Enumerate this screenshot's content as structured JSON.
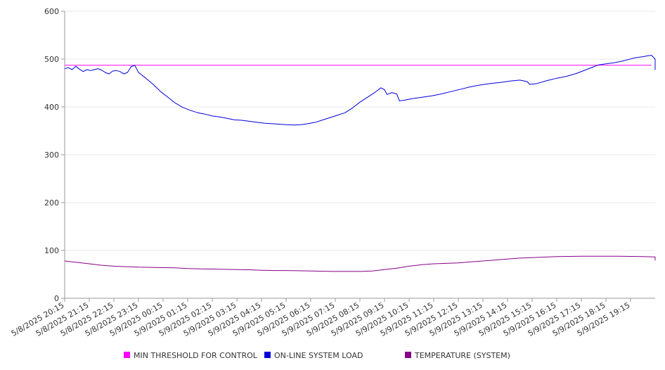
{
  "chart_data": {
    "type": "line",
    "x": [
      "5/8/2025 20:15",
      "5/8/2025 21:15",
      "5/8/2025 22:15",
      "5/8/2025 23:15",
      "5/9/2025 00:15",
      "5/9/2025 01:15",
      "5/9/2025 02:15",
      "5/9/2025 03:15",
      "5/9/2025 04:15",
      "5/9/2025 05:15",
      "5/9/2025 06:15",
      "5/9/2025 07:15",
      "5/9/2025 08:15",
      "5/9/2025 09:15",
      "5/9/2025 10:15",
      "5/9/2025 11:15",
      "5/9/2025 12:15",
      "5/9/2025 13:15",
      "5/9/2025 14:15",
      "5/9/2025 15:15",
      "5/9/2025 16:15",
      "5/9/2025 17:15",
      "5/9/2025 18:15",
      "5/9/2025 19:15"
    ],
    "ylim": [
      0,
      600
    ],
    "yticks": [
      0,
      100,
      200,
      300,
      400,
      500,
      600
    ],
    "grid": true,
    "legend_position": "bottom",
    "series": [
      {
        "name": "MIN THRESHOLD FOR CONTROL",
        "color": "#ff00ff",
        "points": [
          [
            0,
            487
          ],
          [
            23.85,
            487
          ]
        ]
      },
      {
        "name": "ON-LINE SYSTEM LOAD",
        "color": "#0000dd",
        "points": [
          [
            0,
            480
          ],
          [
            0.15,
            482
          ],
          [
            0.3,
            478
          ],
          [
            0.45,
            485
          ],
          [
            0.6,
            479
          ],
          [
            0.75,
            474
          ],
          [
            0.9,
            478
          ],
          [
            1.05,
            476
          ],
          [
            1.2,
            478
          ],
          [
            1.35,
            480
          ],
          [
            1.5,
            477
          ],
          [
            1.65,
            472
          ],
          [
            1.8,
            469
          ],
          [
            1.95,
            475
          ],
          [
            2.1,
            476
          ],
          [
            2.25,
            474
          ],
          [
            2.4,
            469
          ],
          [
            2.55,
            472
          ],
          [
            2.7,
            484
          ],
          [
            2.85,
            487
          ],
          [
            3.0,
            472
          ],
          [
            3.3,
            460
          ],
          [
            3.6,
            447
          ],
          [
            3.9,
            432
          ],
          [
            4.2,
            420
          ],
          [
            4.5,
            408
          ],
          [
            4.8,
            399
          ],
          [
            5.1,
            393
          ],
          [
            5.4,
            388
          ],
          [
            5.7,
            385
          ],
          [
            6.0,
            381
          ],
          [
            6.3,
            379
          ],
          [
            6.6,
            376
          ],
          [
            6.9,
            373
          ],
          [
            7.2,
            372
          ],
          [
            7.5,
            370
          ],
          [
            7.8,
            368
          ],
          [
            8.1,
            366
          ],
          [
            8.4,
            365
          ],
          [
            8.7,
            364
          ],
          [
            9.0,
            363
          ],
          [
            9.3,
            362
          ],
          [
            9.6,
            363
          ],
          [
            9.9,
            365
          ],
          [
            10.2,
            368
          ],
          [
            10.5,
            373
          ],
          [
            10.8,
            378
          ],
          [
            11.1,
            383
          ],
          [
            11.4,
            388
          ],
          [
            11.7,
            398
          ],
          [
            12.0,
            410
          ],
          [
            12.3,
            420
          ],
          [
            12.6,
            430
          ],
          [
            12.85,
            440
          ],
          [
            13.0,
            436
          ],
          [
            13.1,
            426
          ],
          [
            13.3,
            430
          ],
          [
            13.5,
            427
          ],
          [
            13.6,
            413
          ],
          [
            13.8,
            414
          ],
          [
            14.1,
            417
          ],
          [
            14.5,
            420
          ],
          [
            14.9,
            423
          ],
          [
            15.3,
            427
          ],
          [
            15.7,
            432
          ],
          [
            16.1,
            437
          ],
          [
            16.5,
            442
          ],
          [
            16.9,
            446
          ],
          [
            17.3,
            449
          ],
          [
            17.7,
            451
          ],
          [
            18.1,
            454
          ],
          [
            18.5,
            456
          ],
          [
            18.8,
            453
          ],
          [
            18.9,
            447
          ],
          [
            19.2,
            449
          ],
          [
            19.6,
            455
          ],
          [
            20.0,
            460
          ],
          [
            20.4,
            464
          ],
          [
            20.8,
            470
          ],
          [
            21.2,
            478
          ],
          [
            21.5,
            484
          ],
          [
            21.7,
            488
          ],
          [
            22.0,
            490
          ],
          [
            22.3,
            492
          ],
          [
            22.6,
            495
          ],
          [
            22.9,
            499
          ],
          [
            23.2,
            503
          ],
          [
            23.5,
            505
          ],
          [
            23.7,
            507
          ],
          [
            23.85,
            508
          ],
          [
            24.0,
            500
          ],
          [
            24.15,
            490
          ],
          [
            24.3,
            480
          ],
          [
            24.45,
            478
          ],
          [
            24.6,
            480
          ],
          [
            24.8,
            479
          ],
          [
            25.0,
            479
          ],
          [
            25.2,
            479
          ],
          [
            25.35,
            485
          ],
          [
            25.5,
            495
          ],
          [
            25.65,
            497
          ],
          [
            25.8,
            496
          ],
          [
            26.0,
            500
          ],
          [
            26.2,
            496
          ],
          [
            26.4,
            499
          ],
          [
            26.6,
            495
          ],
          [
            26.8,
            498
          ],
          [
            27.0,
            494
          ],
          [
            27.2,
            490
          ],
          [
            27.4,
            488
          ],
          [
            27.5,
            485
          ]
        ]
      },
      {
        "name": "TEMPERATURE (SYSTEM)",
        "color": "#880088",
        "points": [
          [
            0,
            78
          ],
          [
            0.5,
            75
          ],
          [
            1.0,
            72
          ],
          [
            1.5,
            69
          ],
          [
            2.0,
            67
          ],
          [
            2.5,
            66
          ],
          [
            3.0,
            65
          ],
          [
            3.5,
            64.5
          ],
          [
            4.0,
            64
          ],
          [
            4.5,
            63.5
          ],
          [
            5.0,
            62
          ],
          [
            5.5,
            61.5
          ],
          [
            6.0,
            61
          ],
          [
            6.5,
            60.5
          ],
          [
            7.0,
            60
          ],
          [
            7.5,
            59.5
          ],
          [
            8.0,
            58.5
          ],
          [
            8.5,
            58
          ],
          [
            9.0,
            58
          ],
          [
            9.5,
            57.5
          ],
          [
            10.0,
            57
          ],
          [
            10.5,
            56.5
          ],
          [
            11.0,
            56
          ],
          [
            11.5,
            56
          ],
          [
            12.0,
            56
          ],
          [
            12.5,
            57
          ],
          [
            13.0,
            60
          ],
          [
            13.5,
            63
          ],
          [
            14.0,
            67
          ],
          [
            14.5,
            70
          ],
          [
            15.0,
            72
          ],
          [
            15.5,
            73
          ],
          [
            16.0,
            74
          ],
          [
            16.5,
            76
          ],
          [
            17.0,
            78
          ],
          [
            17.5,
            80
          ],
          [
            18.0,
            82
          ],
          [
            18.5,
            84
          ],
          [
            19.0,
            85
          ],
          [
            19.5,
            86
          ],
          [
            20.0,
            87
          ],
          [
            20.5,
            87.5
          ],
          [
            21.0,
            88
          ],
          [
            21.5,
            88
          ],
          [
            22.0,
            88
          ],
          [
            22.5,
            88
          ],
          [
            23.0,
            87.5
          ],
          [
            23.5,
            87
          ],
          [
            24.0,
            86.5
          ],
          [
            24.5,
            86
          ],
          [
            25.0,
            85.5
          ],
          [
            25.5,
            85
          ],
          [
            26.0,
            84
          ],
          [
            26.5,
            82
          ],
          [
            27.0,
            80
          ],
          [
            27.5,
            79
          ]
        ]
      }
    ]
  }
}
